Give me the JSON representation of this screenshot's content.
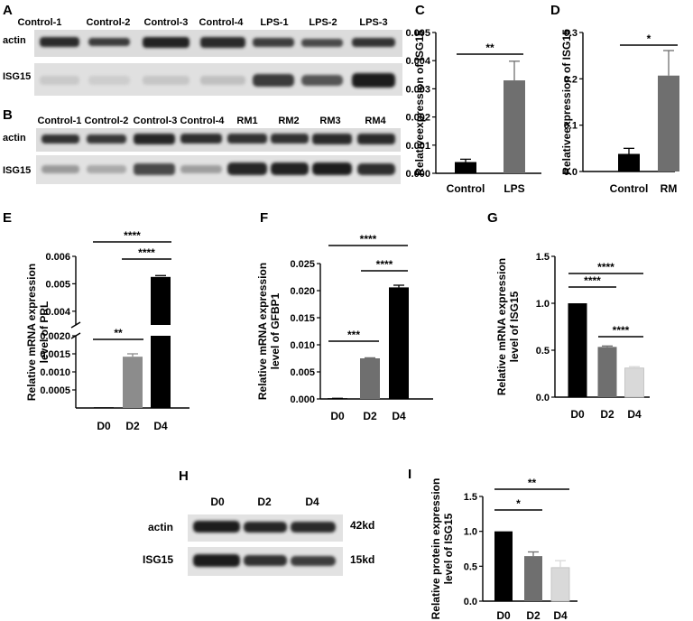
{
  "blots": [
    {
      "panel": "A",
      "lanes": [
        "Control-1",
        "Control-2",
        "Control-3",
        "Control-4",
        "LPS-1",
        "LPS-2",
        "LPS-3"
      ],
      "rows": [
        "actin",
        "ISG15"
      ],
      "size_markers": []
    },
    {
      "panel": "B",
      "lanes": [
        "Control-1",
        "Control-2",
        "Control-3",
        "Control-4",
        "RM1",
        "RM2",
        "RM3",
        "RM4"
      ],
      "rows": [
        "actin",
        "ISG15"
      ],
      "size_markers": []
    },
    {
      "panel": "H",
      "lanes": [
        "D0",
        "D2",
        "D4"
      ],
      "rows": [
        "actin",
        "ISG15"
      ],
      "size_markers": [
        "42kd",
        "15kd"
      ]
    }
  ],
  "chart_data": [
    {
      "panel": "C",
      "type": "bar",
      "categories": [
        "Control",
        "LPS"
      ],
      "values": [
        0.0004,
        0.0033
      ],
      "errors": [
        0.0001,
        0.00068
      ],
      "colors": [
        "#000000",
        "#6f6f6f"
      ],
      "ylabel": "Relativeexpression of ISG15",
      "ylim": [
        0,
        0.005
      ],
      "yticks": [
        "0.000",
        "0.001",
        "0.002",
        "0.003",
        "0.004",
        "0.005"
      ],
      "significance": [
        {
          "from": 0,
          "to": 1,
          "label": "**"
        }
      ]
    },
    {
      "panel": "D",
      "type": "bar",
      "categories": [
        "Control",
        "RM"
      ],
      "values": [
        0.038,
        0.207
      ],
      "errors": [
        0.012,
        0.054
      ],
      "colors": [
        "#000000",
        "#6f6f6f"
      ],
      "ylabel": "Relativeexpression of ISG15",
      "ylim": [
        0,
        0.3
      ],
      "yticks": [
        "0.0",
        "0.1",
        "0.2",
        "0.3"
      ],
      "significance": [
        {
          "from": 0,
          "to": 1,
          "label": "*"
        }
      ]
    },
    {
      "panel": "E",
      "type": "bar",
      "categories": [
        "D0",
        "D2",
        "D4"
      ],
      "values": [
        0.0,
        0.00142,
        0.00525
      ],
      "errors": [
        0.0,
        8e-05,
        5e-05
      ],
      "colors": [
        "#000000",
        "#8c8c8c",
        "#000000"
      ],
      "ylabel": "Relative mRNA expression level of PRL",
      "axis_break": true,
      "yticks_lower": [
        "0.0005",
        "0.0010",
        "0.0015",
        "0.0020"
      ],
      "yticks_upper": [
        "0.004",
        "0.005",
        "0.006"
      ],
      "significance": [
        {
          "from": 0,
          "to": 1,
          "label": "**"
        },
        {
          "from": 1,
          "to": 2,
          "label": "****"
        },
        {
          "from": 0,
          "to": 2,
          "label": "****"
        }
      ]
    },
    {
      "panel": "F",
      "type": "bar",
      "categories": [
        "D0",
        "D2",
        "D4"
      ],
      "values": [
        0.0001,
        0.0075,
        0.0206
      ],
      "errors": [
        2e-05,
        0.0001,
        0.0004
      ],
      "colors": [
        "#000000",
        "#6f6f6f",
        "#000000"
      ],
      "ylabel": "Relative mRNA expression level of GFBP1",
      "ylim": [
        0,
        0.025
      ],
      "yticks": [
        "0.000",
        "0.005",
        "0.010",
        "0.015",
        "0.020",
        "0.025"
      ],
      "significance": [
        {
          "from": 0,
          "to": 1,
          "label": "***"
        },
        {
          "from": 1,
          "to": 2,
          "label": "****"
        },
        {
          "from": 0,
          "to": 2,
          "label": "****"
        }
      ]
    },
    {
      "panel": "G",
      "type": "bar",
      "categories": [
        "D0",
        "D2",
        "D4"
      ],
      "values": [
        1.0,
        0.535,
        0.31
      ],
      "errors": [
        0.0,
        0.01,
        0.015
      ],
      "colors": [
        "#000000",
        "#6f6f6f",
        "#d9d9d9"
      ],
      "ylabel": "Relative mRNA expression level of ISG15",
      "ylim": [
        0,
        1.5
      ],
      "yticks": [
        "0.0",
        "0.5",
        "1.0",
        "1.5"
      ],
      "significance": [
        {
          "from": 0,
          "to": 1,
          "label": "****"
        },
        {
          "from": 1,
          "to": 2,
          "label": "****"
        },
        {
          "from": 0,
          "to": 2,
          "label": "****"
        }
      ]
    },
    {
      "panel": "I",
      "type": "bar",
      "categories": [
        "D0",
        "D2",
        "D4"
      ],
      "values": [
        1.0,
        0.645,
        0.48
      ],
      "errors": [
        0.0,
        0.06,
        0.1
      ],
      "colors": [
        "#000000",
        "#6f6f6f",
        "#d9d9d9"
      ],
      "ylabel": "Relative protein expression level of ISG15",
      "ylim": [
        0,
        1.5
      ],
      "yticks": [
        "0.0",
        "0.5",
        "1.0",
        "1.5"
      ],
      "significance": [
        {
          "from": 0,
          "to": 1,
          "label": "*"
        },
        {
          "from": 0,
          "to": 2,
          "label": "**"
        }
      ]
    }
  ]
}
